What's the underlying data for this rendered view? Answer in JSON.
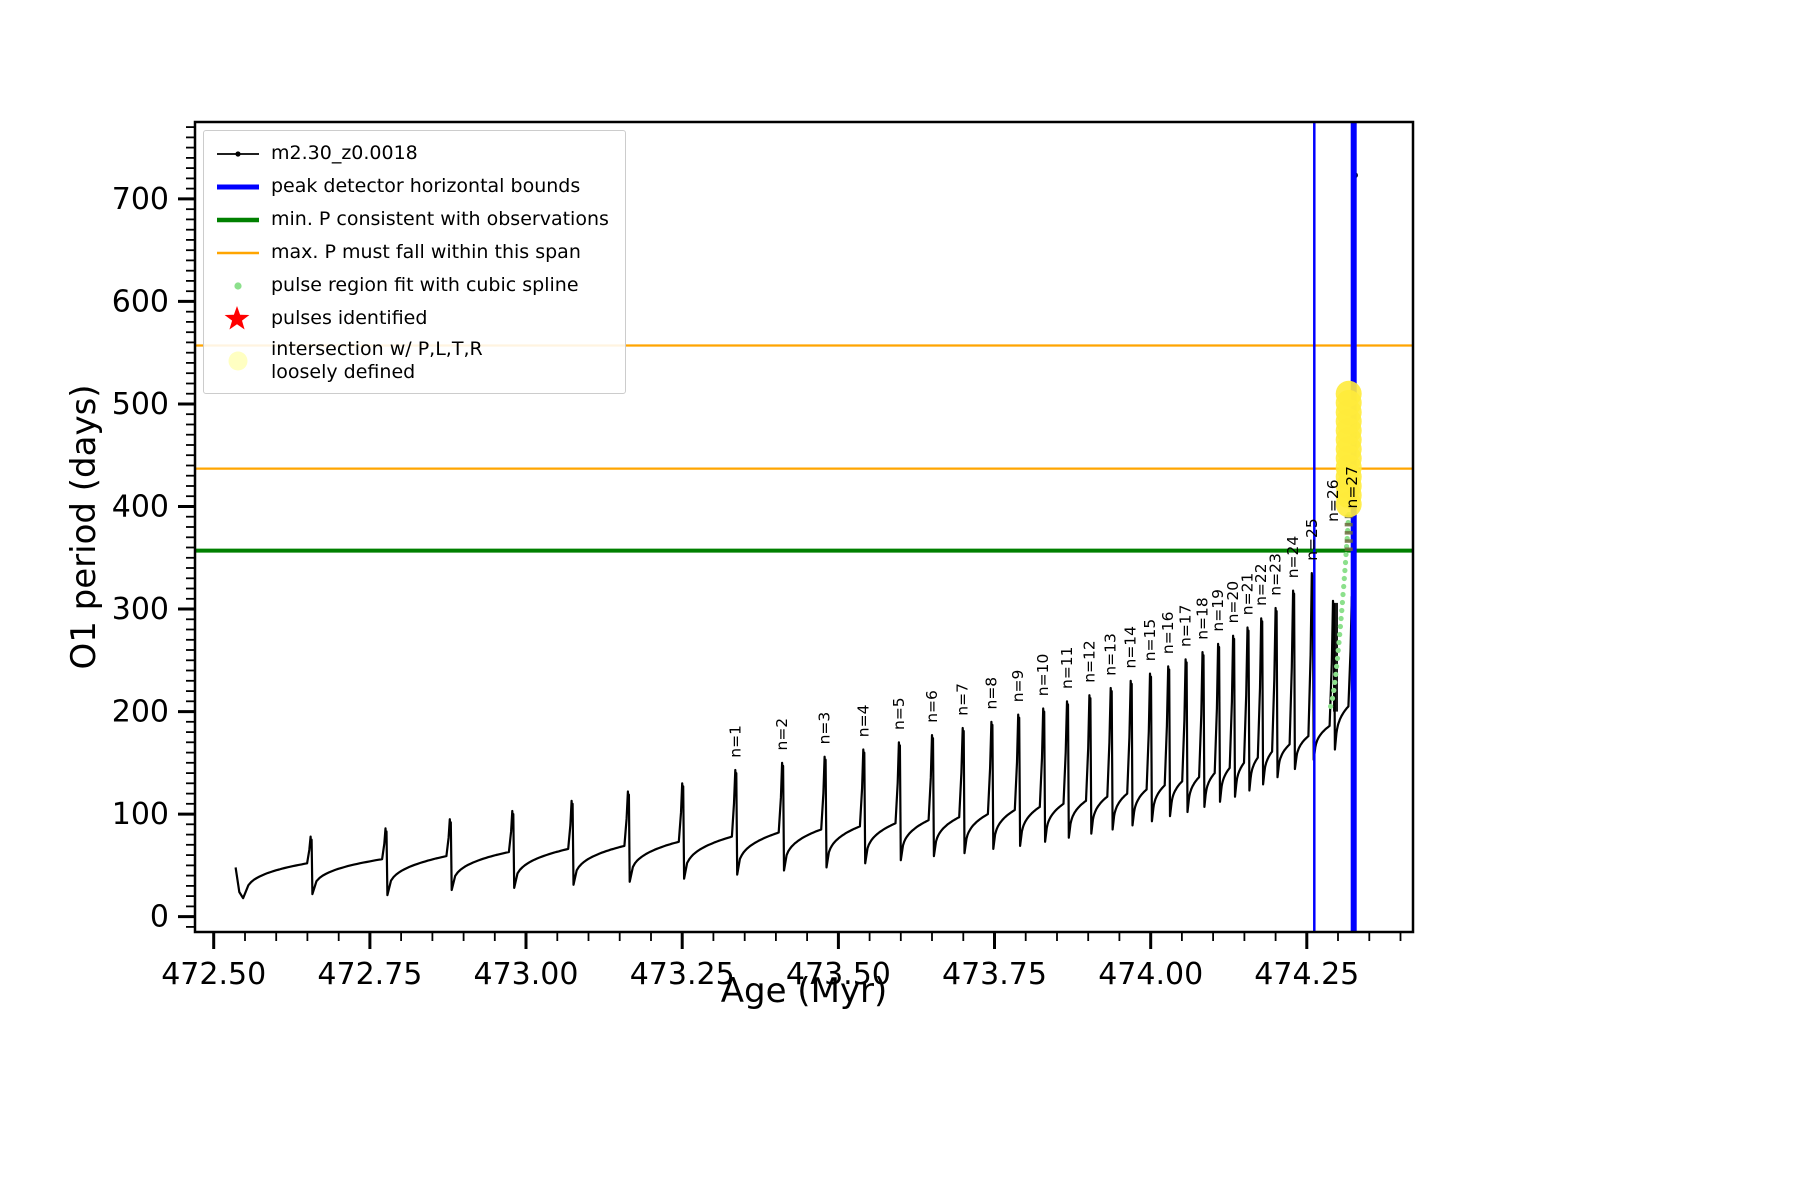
{
  "colors": {
    "series": "#000000",
    "bounds": "#0000FF",
    "min_p": "#008000",
    "max_p_span": "#FFA500",
    "spline": "#8CE08C",
    "pulse_star": "#FF0000",
    "intersection": "#FFEB3B",
    "intersection_legend": "#FFFFC2",
    "axis": "#000000"
  },
  "legend": {
    "items": [
      {
        "marker": "series-line",
        "label": "m2.30_z0.0018"
      },
      {
        "marker": "vline-blue",
        "label": "peak detector horizontal bounds"
      },
      {
        "marker": "hline-green",
        "label": "min. P consistent with observations"
      },
      {
        "marker": "hline-orange",
        "label": "max. P must fall within this span"
      },
      {
        "marker": "spline-dot",
        "label": "pulse region fit with cubic spline"
      },
      {
        "marker": "star-red",
        "label": "pulses identified"
      },
      {
        "marker": "blob-yellow",
        "label": "intersection w/ P,L,T,R\nloosely defined"
      }
    ]
  },
  "chart_data": {
    "type": "line",
    "title": "",
    "xlabel": "Age (Myr)",
    "ylabel": "O1 period (days)",
    "xlim": [
      472.47,
      474.42
    ],
    "ylim": [
      -15,
      775
    ],
    "x_ticks": [
      472.5,
      472.75,
      473.0,
      473.25,
      473.5,
      473.75,
      474.0,
      474.25
    ],
    "x_minor_step": 0.05,
    "y_ticks": [
      0,
      100,
      200,
      300,
      400,
      500,
      600,
      700
    ],
    "y_minor_step": 10,
    "grid": false,
    "legend_position": "upper-left",
    "series_label": "m2.30_z0.0018",
    "series_start": {
      "x": 472.535,
      "y": 48,
      "drop_to": 18
    },
    "pulses": [
      {
        "x": 472.655,
        "pre": 52,
        "peak": 78,
        "post": 22
      },
      {
        "x": 472.775,
        "pre": 56,
        "peak": 86,
        "post": 21
      },
      {
        "x": 472.878,
        "pre": 59,
        "peak": 95,
        "post": 26
      },
      {
        "x": 472.978,
        "pre": 63,
        "peak": 103,
        "post": 28
      },
      {
        "x": 473.073,
        "pre": 66,
        "peak": 113,
        "post": 31
      },
      {
        "x": 473.163,
        "pre": 69,
        "peak": 122,
        "post": 34
      },
      {
        "x": 473.25,
        "pre": 73,
        "peak": 130,
        "post": 37
      },
      {
        "n": 1,
        "x": 473.335,
        "pre": 78,
        "peak": 143,
        "post": 41
      },
      {
        "n": 2,
        "x": 473.41,
        "pre": 82,
        "peak": 150,
        "post": 45
      },
      {
        "n": 3,
        "x": 473.478,
        "pre": 85,
        "peak": 156,
        "post": 48
      },
      {
        "n": 4,
        "x": 473.54,
        "pre": 88,
        "peak": 163,
        "post": 52
      },
      {
        "n": 5,
        "x": 473.597,
        "pre": 91,
        "peak": 170,
        "post": 55
      },
      {
        "n": 6,
        "x": 473.65,
        "pre": 94,
        "peak": 177,
        "post": 59
      },
      {
        "n": 7,
        "x": 473.699,
        "pre": 97,
        "peak": 184,
        "post": 62
      },
      {
        "n": 8,
        "x": 473.745,
        "pre": 100,
        "peak": 190,
        "post": 66
      },
      {
        "n": 9,
        "x": 473.788,
        "pre": 104,
        "peak": 197,
        "post": 69
      },
      {
        "n": 10,
        "x": 473.828,
        "pre": 107,
        "peak": 203,
        "post": 73
      },
      {
        "n": 11,
        "x": 473.866,
        "pre": 110,
        "peak": 210,
        "post": 77
      },
      {
        "n": 12,
        "x": 473.902,
        "pre": 113,
        "peak": 216,
        "post": 81
      },
      {
        "n": 13,
        "x": 473.936,
        "pre": 117,
        "peak": 223,
        "post": 85
      },
      {
        "n": 14,
        "x": 473.968,
        "pre": 120,
        "peak": 230,
        "post": 89
      },
      {
        "n": 15,
        "x": 473.999,
        "pre": 124,
        "peak": 237,
        "post": 93
      },
      {
        "n": 16,
        "x": 474.028,
        "pre": 128,
        "peak": 244,
        "post": 98
      },
      {
        "n": 17,
        "x": 474.056,
        "pre": 132,
        "peak": 251,
        "post": 102
      },
      {
        "n": 18,
        "x": 474.083,
        "pre": 136,
        "peak": 258,
        "post": 107
      },
      {
        "n": 19,
        "x": 474.108,
        "pre": 140,
        "peak": 266,
        "post": 112
      },
      {
        "n": 20,
        "x": 474.132,
        "pre": 145,
        "peak": 274,
        "post": 117
      },
      {
        "n": 21,
        "x": 474.155,
        "pre": 150,
        "peak": 282,
        "post": 123
      },
      {
        "n": 22,
        "x": 474.177,
        "pre": 155,
        "peak": 291,
        "post": 129
      },
      {
        "n": 23,
        "x": 474.2,
        "pre": 161,
        "peak": 301,
        "post": 136
      },
      {
        "n": 24,
        "x": 474.228,
        "pre": 168,
        "peak": 318,
        "post": 144
      },
      {
        "n": 25,
        "x": 474.258,
        "pre": 176,
        "peak": 335,
        "post": 153
      },
      {
        "n": 26,
        "x": 474.292,
        "pre": 186,
        "peak": 308,
        "post": 163,
        "label_y": 385
      },
      {
        "n": 27,
        "x": 474.322,
        "pre": 205,
        "peak": 312,
        "post": 2,
        "label_y": 398
      }
    ],
    "stray_point": {
      "x": 474.327,
      "y": 723
    },
    "vlines": {
      "label": "peak detector horizontal bounds",
      "x": [
        474.262,
        474.325
      ],
      "lw": [
        2.5,
        6
      ]
    },
    "hline_min_p": {
      "label": "min. P consistent with observations",
      "y": 357
    },
    "hline_max_span": {
      "label": "max. P must fall within this span",
      "y_low": 437,
      "y_high": 557
    },
    "spline_trace": {
      "x_start": 474.288,
      "x_end": 474.326,
      "y_start": 205,
      "y_end": 478,
      "n_dots": 36
    },
    "intersection_blob": {
      "x": 474.317,
      "y_min": 402,
      "y_max": 518
    },
    "dark_column": {
      "x": 474.296,
      "y_min": 200,
      "y_max": 306
    }
  }
}
